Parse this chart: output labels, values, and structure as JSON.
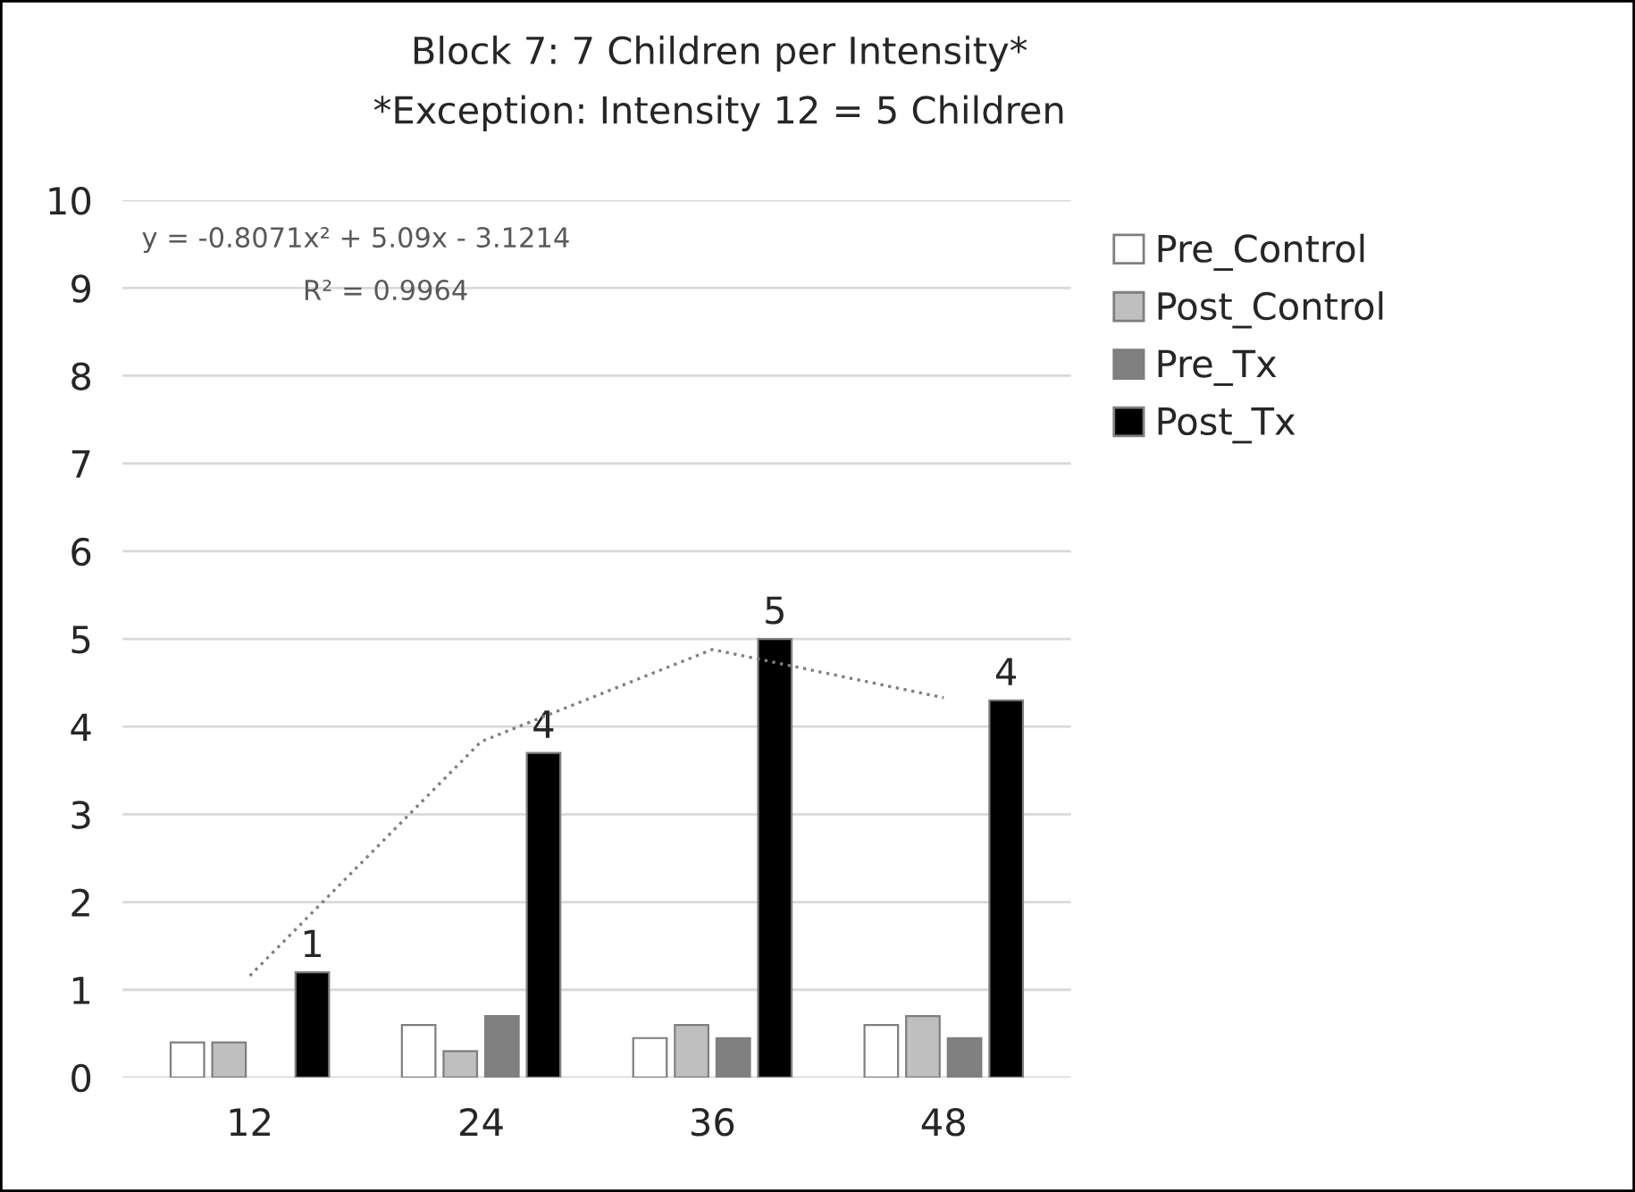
{
  "chart_data": {
    "type": "bar",
    "title": "Block 7: 7 Children per Intensity*",
    "subtitle": "*Exception: Intensity 12 = 5 Children",
    "categories": [
      "12",
      "24",
      "36",
      "48"
    ],
    "series": [
      {
        "name": "Pre_Control",
        "color": "#ffffff",
        "values": [
          0.4,
          0.6,
          0.45,
          0.6
        ]
      },
      {
        "name": "Post_Control",
        "color": "#bfbfbf",
        "values": [
          0.4,
          0.3,
          0.6,
          0.7
        ]
      },
      {
        "name": "Pre_Tx",
        "color": "#808080",
        "values": [
          null,
          0.7,
          0.45,
          0.45
        ]
      },
      {
        "name": "Post_Tx",
        "color": "#000000",
        "values": [
          1.2,
          3.7,
          5.0,
          4.3
        ],
        "value_labels": [
          "1",
          "4",
          "5",
          "4"
        ]
      },
      {
        "type": "line",
        "color": "#808080",
        "line_style": "dotted",
        "values": [
          1.16,
          3.83,
          4.88,
          4.33
        ]
      }
    ],
    "ylim": [
      0,
      10
    ],
    "yticks": [
      0,
      1,
      2,
      3,
      4,
      5,
      6,
      7,
      8,
      9,
      10
    ],
    "grid": "y",
    "legend": "right",
    "annotations": [
      "y = -0.8071x² + 5.09x - 3.1214",
      "R² = 0.9964"
    ]
  }
}
